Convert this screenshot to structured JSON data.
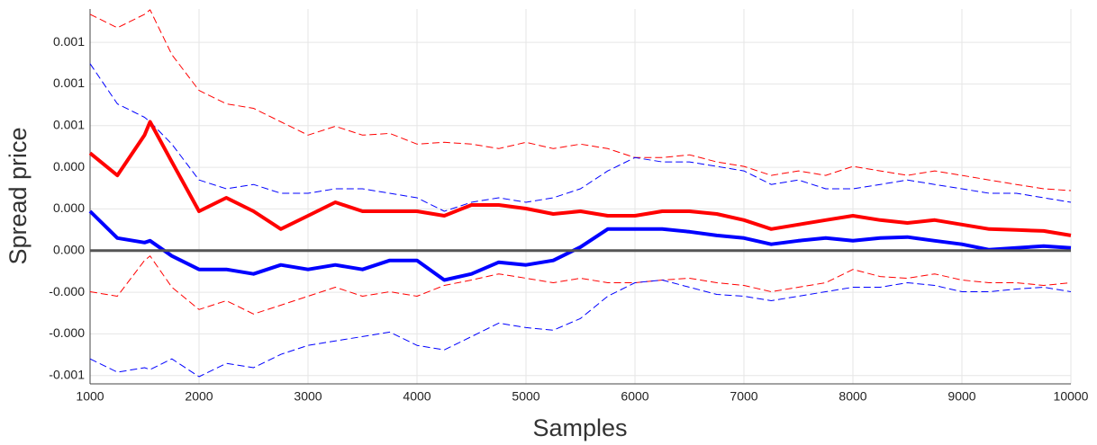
{
  "chart_data": {
    "type": "line",
    "xlabel": "Samples",
    "ylabel": "Spread price",
    "x": [
      1000,
      1250,
      1500,
      1550,
      1750,
      2000,
      2250,
      2500,
      2750,
      3000,
      3250,
      3500,
      3750,
      4000,
      4250,
      4500,
      4750,
      5000,
      5250,
      5500,
      5750,
      6000,
      6250,
      6500,
      6750,
      7000,
      7250,
      7500,
      7750,
      8000,
      8250,
      8500,
      8750,
      9000,
      9250,
      9500,
      9750,
      10000
    ],
    "series": [
      {
        "color": "#ff0000",
        "style": "dashed",
        "width": 1,
        "values": [
          0.001418,
          0.001337,
          0.001418,
          0.001445,
          0.001176,
          0.000961,
          0.000881,
          0.000854,
          0.000773,
          0.000693,
          0.000746,
          0.000693,
          0.000703,
          0.000639,
          0.00065,
          0.000639,
          0.000612,
          0.00065,
          0.000612,
          0.000639,
          0.000612,
          0.000558,
          0.000558,
          0.000575,
          0.000532,
          0.000505,
          0.000451,
          0.000478,
          0.000451,
          0.000505,
          0.000478,
          0.000451,
          0.000478,
          0.000451,
          0.000424,
          0.000397,
          0.000371,
          0.00036
        ]
      },
      {
        "color": "#ff0000",
        "style": "dashed",
        "width": 1,
        "values": [
          -0.000247,
          -0.000274,
          -5.9e-05,
          -3.2e-05,
          -0.00022,
          -0.000354,
          -0.000301,
          -0.000381,
          -0.000328,
          -0.000274,
          -0.00022,
          -0.000274,
          -0.000247,
          -0.000274,
          -0.000209,
          -0.000177,
          -0.00014,
          -0.000166,
          -0.000193,
          -0.000166,
          -0.000193,
          -0.000193,
          -0.000177,
          -0.000166,
          -0.000193,
          -0.000209,
          -0.000247,
          -0.00022,
          -0.000193,
          -0.000113,
          -0.000156,
          -0.000166,
          -0.00014,
          -0.000177,
          -0.000193,
          -0.000193,
          -0.000209,
          -0.000193
        ]
      },
      {
        "color": "#0000ff",
        "style": "dashed",
        "width": 1,
        "values": [
          0.001122,
          0.000881,
          0.0008,
          0.000773,
          0.000639,
          0.000424,
          0.000371,
          0.000397,
          0.000344,
          0.000344,
          0.000371,
          0.000371,
          0.000344,
          0.000317,
          0.000236,
          0.00029,
          0.000317,
          0.00029,
          0.000317,
          0.000371,
          0.000478,
          0.000558,
          0.000532,
          0.000532,
          0.000505,
          0.000478,
          0.000397,
          0.000424,
          0.000371,
          0.000371,
          0.000397,
          0.000424,
          0.000397,
          0.000371,
          0.000344,
          0.000344,
          0.000317,
          0.00029
        ]
      },
      {
        "color": "#0000ff",
        "style": "dashed",
        "width": 1,
        "values": [
          -0.00065,
          -0.00073,
          -0.000703,
          -0.000714,
          -0.00065,
          -0.000757,
          -0.000677,
          -0.000703,
          -0.000623,
          -0.000569,
          -0.000542,
          -0.000516,
          -0.000489,
          -0.000569,
          -0.000596,
          -0.000516,
          -0.000435,
          -0.000462,
          -0.000478,
          -0.000408,
          -0.000274,
          -0.000193,
          -0.000177,
          -0.00022,
          -0.000263,
          -0.000274,
          -0.000301,
          -0.000274,
          -0.000247,
          -0.00022,
          -0.00022,
          -0.000193,
          -0.000209,
          -0.000247,
          -0.000247,
          -0.000231,
          -0.00022,
          -0.000247
        ]
      },
      {
        "color": "#ff0000",
        "style": "solid",
        "width": 4,
        "values": [
          0.000585,
          0.000451,
          0.000693,
          0.000773,
          0.000532,
          0.000236,
          0.000317,
          0.000236,
          0.000129,
          0.000209,
          0.00029,
          0.000236,
          0.000236,
          0.000236,
          0.000209,
          0.000274,
          0.000274,
          0.000252,
          0.00022,
          0.000236,
          0.000209,
          0.000209,
          0.000236,
          0.000236,
          0.00022,
          0.000183,
          0.000129,
          0.000156,
          0.000183,
          0.000209,
          0.000183,
          0.000166,
          0.000183,
          0.000156,
          0.000129,
          0.000124,
          0.000118,
          9.1e-05
        ]
      },
      {
        "color": "#0000ff",
        "style": "solid",
        "width": 4,
        "values": [
          0.000236,
          7.5e-05,
          4.8e-05,
          5.9e-05,
          -3.2e-05,
          -0.000113,
          -0.000113,
          -0.00014,
          -8.6e-05,
          -0.000113,
          -8.6e-05,
          -0.000113,
          -5.9e-05,
          -5.9e-05,
          -0.000177,
          -0.00014,
          -7e-05,
          -8.6e-05,
          -5.9e-05,
          2.1e-05,
          0.000129,
          0.000129,
          0.000129,
          0.000113,
          9.1e-05,
          7.5e-05,
          3.8e-05,
          5.9e-05,
          7.5e-05,
          5.9e-05,
          7.5e-05,
          8.1e-05,
          5.9e-05,
          3.8e-05,
          5e-06,
          1.6e-05,
          2.7e-05,
          1.6e-05
        ]
      }
    ],
    "reference_line": {
      "value": 0,
      "color": "#555555"
    },
    "xlim": [
      1000,
      10000
    ],
    "xticks": [
      1000,
      2000,
      3000,
      4000,
      5000,
      6000,
      7000,
      8000,
      9000,
      10000
    ],
    "ylim": [
      -0.0008,
      0.00145
    ],
    "yticks": [
      {
        "value": -0.00075,
        "label": "-0.001"
      },
      {
        "value": -0.0005,
        "label": "-0.000"
      },
      {
        "value": -0.00025,
        "label": "-0.000"
      },
      {
        "value": 0,
        "label": "0.000"
      },
      {
        "value": 0.00025,
        "label": "0.000"
      },
      {
        "value": 0.0005,
        "label": "0.000"
      },
      {
        "value": 0.00075,
        "label": "0.001"
      },
      {
        "value": 0.001,
        "label": "0.001"
      },
      {
        "value": 0.00125,
        "label": "0.001"
      }
    ],
    "grid": true
  }
}
